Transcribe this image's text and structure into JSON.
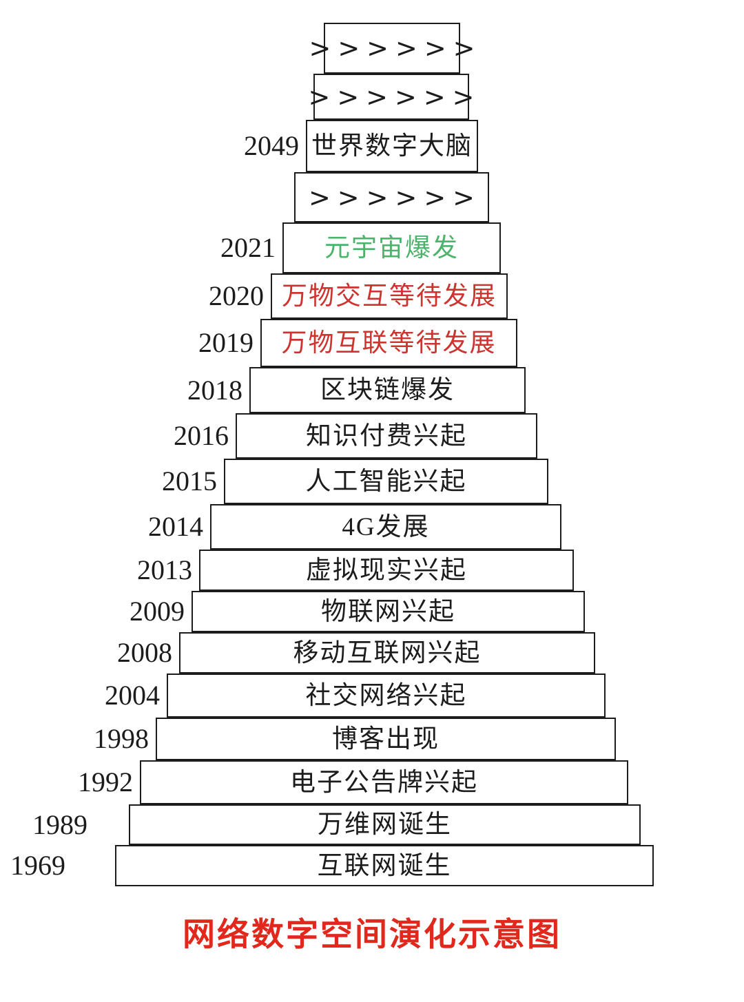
{
  "title": {
    "text": "网络数字空间演化示意图"
  },
  "colors": {
    "ink": "#1c1c1c",
    "red": "#cd3430",
    "green": "#4cb36a",
    "title-red": "#e0281c"
  },
  "pyramid": {
    "layers": [
      {
        "year": "",
        "label": ">>>>>>",
        "color": "black",
        "type": "arrows"
      },
      {
        "year": "",
        "label": ">>>>>>",
        "color": "black",
        "type": "arrows"
      },
      {
        "year": "2049",
        "label": "世界数字大脑",
        "color": "black",
        "type": "event"
      },
      {
        "year": "",
        "label": ">>>>>>",
        "color": "black",
        "type": "arrows"
      },
      {
        "year": "2021",
        "label": "元宇宙爆发",
        "color": "green",
        "type": "event"
      },
      {
        "year": "2020",
        "label": "万物交互等待发展",
        "color": "red",
        "type": "event"
      },
      {
        "year": "2019",
        "label": "万物互联等待发展",
        "color": "red",
        "type": "event"
      },
      {
        "year": "2018",
        "label": "区块链爆发",
        "color": "black",
        "type": "event"
      },
      {
        "year": "2016",
        "label": "知识付费兴起",
        "color": "black",
        "type": "event"
      },
      {
        "year": "2015",
        "label": "人工智能兴起",
        "color": "black",
        "type": "event"
      },
      {
        "year": "2014",
        "label": "4G发展",
        "color": "black",
        "type": "event"
      },
      {
        "year": "2013",
        "label": "虚拟现实兴起",
        "color": "black",
        "type": "event"
      },
      {
        "year": "2009",
        "label": "物联网兴起",
        "color": "black",
        "type": "event"
      },
      {
        "year": "2008",
        "label": "移动互联网兴起",
        "color": "black",
        "type": "event"
      },
      {
        "year": "2004",
        "label": "社交网络兴起",
        "color": "black",
        "type": "event"
      },
      {
        "year": "1998",
        "label": "博客出现",
        "color": "black",
        "type": "event"
      },
      {
        "year": "1992",
        "label": "电子公告牌兴起",
        "color": "black",
        "type": "event"
      },
      {
        "year": "1989",
        "label": "万维网诞生",
        "color": "black",
        "type": "event"
      },
      {
        "year": "1969",
        "label": "互联网诞生",
        "color": "black",
        "type": "event"
      }
    ]
  }
}
